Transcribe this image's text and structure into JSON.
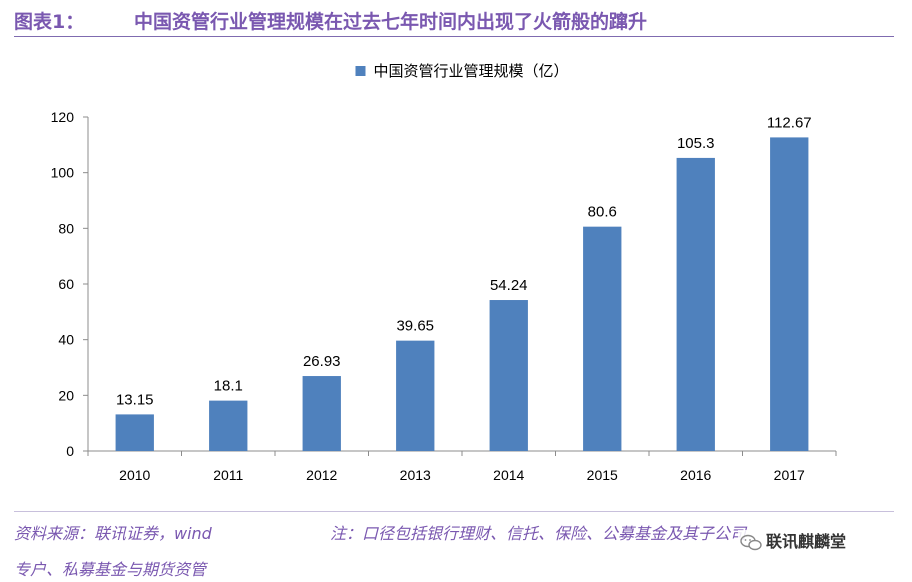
{
  "header": {
    "label": "图表1：",
    "title": "中国资管行业管理规模在过去七年时间内出现了火箭般的蹿升"
  },
  "chart_data": {
    "type": "bar",
    "title": "",
    "categories": [
      "2010",
      "2011",
      "2012",
      "2013",
      "2014",
      "2015",
      "2016",
      "2017"
    ],
    "series": [
      {
        "name": "中国资管行业管理规模（亿）",
        "values": [
          13.15,
          18.1,
          26.93,
          39.65,
          54.24,
          80.6,
          105.3,
          112.67
        ],
        "labels": [
          "13.15",
          "18.1",
          "26.93",
          "39.65",
          "54.24",
          "80.6",
          "105.3",
          "112.67"
        ]
      }
    ],
    "ylim": [
      0,
      120
    ],
    "yticks": [
      0,
      20,
      40,
      60,
      80,
      100,
      120
    ],
    "xlabel": "",
    "ylabel": "",
    "legend_position": "top-center",
    "grid": false,
    "colors": {
      "bar": "#4f81bd",
      "axis": "#8c8c8c",
      "text": "#000000"
    }
  },
  "footer": {
    "source": "资料来源：联讯证券，wind",
    "note_line1": "注：口径包括银行理财、信托、保险、公募基金及其子公司",
    "note_line2": "专户、私募基金与期货资管"
  },
  "watermark": {
    "icon": "wechat-icon",
    "text": "联讯麒麟堂"
  }
}
